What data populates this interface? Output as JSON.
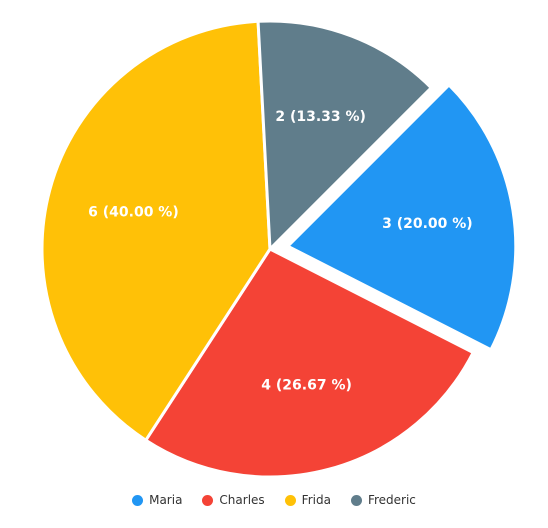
{
  "chart_data": {
    "type": "pie",
    "categories": [
      "Maria",
      "Charles",
      "Frida",
      "Frederic"
    ],
    "values": [
      3,
      4,
      6,
      2
    ],
    "percentages": [
      20.0,
      26.67,
      40.0,
      13.33
    ],
    "slice_labels": [
      "3 (20.00 %)",
      "4 (26.67 %)",
      "6 (40.00 %)",
      "2 (13.33 %)"
    ],
    "colors": [
      "#2196f3",
      "#f44336",
      "#ffc107",
      "#607d8b"
    ],
    "exploded": [
      "Maria"
    ],
    "legend": {
      "placement": "bottom",
      "entries": [
        "Maria",
        "Charles",
        "Frida",
        "Frederic"
      ]
    }
  }
}
